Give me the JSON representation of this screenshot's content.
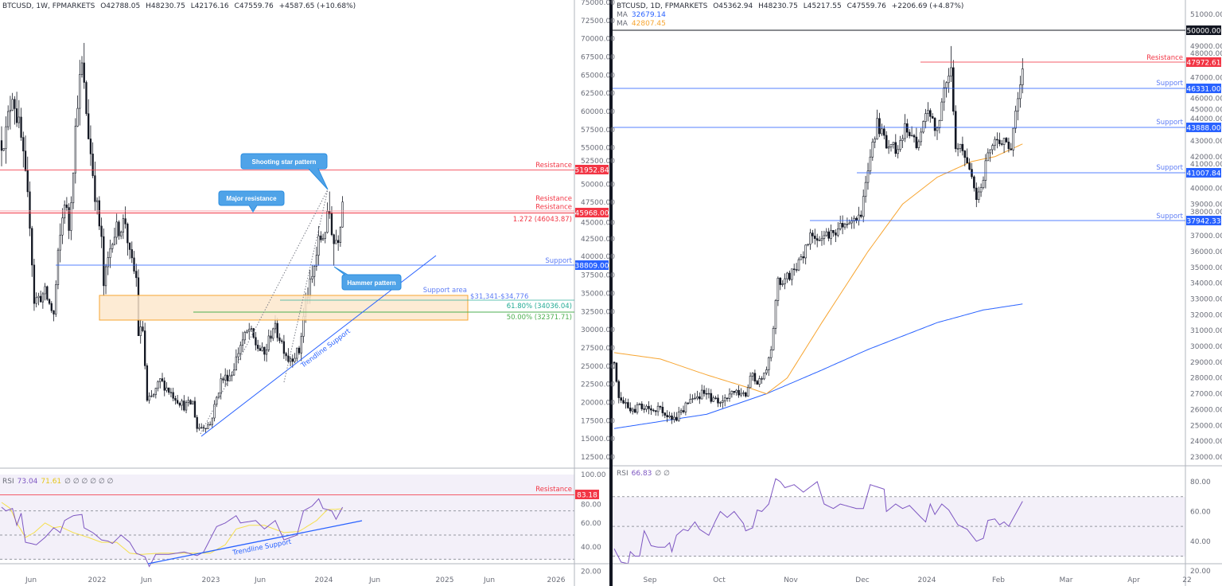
{
  "left_header": {
    "symbol": "BTCUSD, 1W, FPMARKETS",
    "o": "O42788.05",
    "h": "H48230.75",
    "l": "L42176.16",
    "c": "C47559.76",
    "chg": "+4587.65 (+10.68%)"
  },
  "right_header": {
    "symbol": "BTCUSD, 1D, FPMARKETS",
    "o": "O45362.94",
    "h": "H48230.75",
    "l": "L45217.55",
    "c": "C47559.76",
    "chg": "+2206.69 (+4.87%)",
    "ma1_label": "MA",
    "ma1_value": "32679.14",
    "ma2_label": "MA",
    "ma2_value": "42807.45"
  },
  "left_rsi_header": {
    "label": "RSI",
    "v1": "73.04",
    "v2": "71.61",
    "rest": "∅ ∅ ∅ ∅ ∅ ∅"
  },
  "right_rsi_header": {
    "label": "RSI",
    "v1": "66.83",
    "rest": "∅ ∅"
  },
  "colors": {
    "resistance": "#f23645",
    "support": "#2962ff",
    "support_text": "#5d7cf5",
    "support_area_fill": "#fde8cc",
    "support_area_stroke": "#f7a531",
    "fib618": "#22ab94",
    "fib50": "#4caf50",
    "rsi": "#7e57c2",
    "rsi_ma": "#f5df4d",
    "ma50": "#f7a531",
    "ma200": "#2962ff",
    "callout": "#4fa3e8"
  },
  "left_annotations": {
    "resistance_top": {
      "label": "Resistance",
      "price": "51952.84"
    },
    "resistance_mid": {
      "label1": "Resistance",
      "label2": "Resistance",
      "price": "45968.00",
      "fib": "1.272 (46043.87)"
    },
    "support": {
      "label": "Support",
      "price": "38809.00"
    },
    "support_area": {
      "label": "Support area",
      "range": "$31,341-$34,776"
    },
    "fib_618": "61.80% (34036.04)",
    "fib_50": "50.00% (32371.71)",
    "trendline": "Trendline Support",
    "callout_shooting_star": "Shooting star pattern",
    "callout_major_resistance": "Major resistance",
    "callout_hammer": "Hammer pattern",
    "rsi_resistance": {
      "label": "Resistance",
      "value": "83.18"
    },
    "rsi_trendline": "Trendline Support"
  },
  "right_annotations": {
    "round_level": "50000.00",
    "resistance": {
      "label": "Resistance",
      "price": "47972.61"
    },
    "supports": [
      {
        "label": "Support",
        "price": "46331.00"
      },
      {
        "label": "Support",
        "price": "43888.00"
      },
      {
        "label": "Support",
        "price": "41007.84"
      },
      {
        "label": "Support",
        "price": "37942.33"
      }
    ]
  },
  "left_price_ticks": [
    "75000.00",
    "72500.00",
    "70000.00",
    "67500.00",
    "65000.00",
    "62500.00",
    "60000.00",
    "57500.00",
    "55000.00",
    "52500.00",
    "50000.00",
    "47500.00",
    "45000.00",
    "42500.00",
    "40000.00",
    "37500.00",
    "35000.00",
    "32500.00",
    "30000.00",
    "27500.00",
    "25000.00",
    "22500.00",
    "20000.00",
    "17500.00",
    "15000.00",
    "12500.00"
  ],
  "right_price_ticks": [
    "51000.00",
    "49000.00",
    "48000.00",
    "47000.00",
    "46000.00",
    "45000.00",
    "44000.00",
    "43000.00",
    "42000.00",
    "41000.00",
    "40000.00",
    "39000.00",
    "38000.00",
    "37000.00",
    "36000.00",
    "35000.00",
    "34000.00",
    "33000.00",
    "32000.00",
    "31000.00",
    "30000.00",
    "29000.00",
    "28000.00",
    "27000.00",
    "26000.00",
    "25000.00",
    "24000.00",
    "23000.00"
  ],
  "left_rsi_ticks": [
    "100.00",
    "80.00",
    "60.00",
    "40.00",
    "20.00"
  ],
  "right_rsi_ticks": [
    "80.00",
    "60.00",
    "40.00",
    "20.00"
  ],
  "left_time_labels": [
    "Jun",
    "2022",
    "Jun",
    "2023",
    "Jun",
    "2024",
    "Jun",
    "2025",
    "Jun",
    "2026"
  ],
  "right_time_labels": [
    "Sep",
    "Oct",
    "Nov",
    "Dec",
    "2024",
    "Feb",
    "Mar",
    "Apr",
    "22"
  ],
  "chart_data": [
    {
      "type": "candlestick",
      "title": "BTCUSD, 1W",
      "ylim": [
        11000,
        76000
      ],
      "x_unit": "week index (0 = Feb 2021)",
      "close_waypoints": [
        [
          0,
          56000
        ],
        [
          2,
          57000
        ],
        [
          5,
          63000
        ],
        [
          9,
          56000
        ],
        [
          13,
          45000
        ],
        [
          15,
          34000
        ],
        [
          20,
          35000
        ],
        [
          24,
          32000
        ],
        [
          26,
          40000
        ],
        [
          29,
          48000
        ],
        [
          31,
          44000
        ],
        [
          35,
          62000
        ],
        [
          37,
          66000
        ],
        [
          40,
          57000
        ],
        [
          43,
          49000
        ],
        [
          46,
          42000
        ],
        [
          47,
          36000
        ],
        [
          51,
          43000
        ],
        [
          57,
          45000
        ],
        [
          59,
          40000
        ],
        [
          62,
          37000
        ],
        [
          63,
          29500
        ],
        [
          65,
          30000
        ],
        [
          67,
          20000
        ],
        [
          70,
          21000
        ],
        [
          73,
          23000
        ],
        [
          79,
          21000
        ],
        [
          84,
          19500
        ],
        [
          88,
          20000
        ],
        [
          90,
          16500
        ],
        [
          96,
          17000
        ],
        [
          101,
          23000
        ],
        [
          106,
          24000
        ],
        [
          110,
          28000
        ],
        [
          114,
          30000
        ],
        [
          117,
          28000
        ],
        [
          121,
          26500
        ],
        [
          125,
          30500
        ],
        [
          128,
          29000
        ],
        [
          132,
          26000
        ],
        [
          137,
          27000
        ],
        [
          140,
          34000
        ],
        [
          143,
          37000
        ],
        [
          146,
          42000
        ],
        [
          148,
          43000
        ],
        [
          151,
          46000
        ],
        [
          153,
          42000
        ],
        [
          155,
          43000
        ],
        [
          157,
          47560
        ]
      ],
      "rsi_waypoints": [
        [
          0,
          73
        ],
        [
          2,
          70
        ],
        [
          5,
          72
        ],
        [
          7,
          58
        ],
        [
          9,
          68
        ],
        [
          11,
          44
        ],
        [
          16,
          42
        ],
        [
          20,
          48
        ],
        [
          24,
          56
        ],
        [
          27,
          52
        ],
        [
          29,
          62
        ],
        [
          33,
          66
        ],
        [
          37,
          67
        ],
        [
          38,
          56
        ],
        [
          42,
          52
        ],
        [
          46,
          46
        ],
        [
          49,
          45
        ],
        [
          51,
          43
        ],
        [
          55,
          50
        ],
        [
          59,
          44
        ],
        [
          62,
          35
        ],
        [
          66,
          32
        ],
        [
          68,
          24
        ],
        [
          71,
          34
        ],
        [
          77,
          34
        ],
        [
          84,
          36
        ],
        [
          90,
          33
        ],
        [
          93,
          36
        ],
        [
          99,
          57
        ],
        [
          103,
          60
        ],
        [
          108,
          66
        ],
        [
          110,
          60
        ],
        [
          117,
          62
        ],
        [
          121,
          55
        ],
        [
          126,
          62
        ],
        [
          130,
          46
        ],
        [
          136,
          50
        ],
        [
          139,
          70
        ],
        [
          143,
          74
        ],
        [
          146,
          80
        ],
        [
          148,
          72
        ],
        [
          152,
          70
        ],
        [
          154,
          63
        ],
        [
          157,
          73.04
        ]
      ],
      "rsi_ma_waypoints": [
        [
          0,
          77
        ],
        [
          4,
          72
        ],
        [
          7,
          60
        ],
        [
          11,
          48
        ],
        [
          15,
          52
        ],
        [
          20,
          60
        ],
        [
          24,
          56
        ],
        [
          27,
          57
        ],
        [
          33,
          52
        ],
        [
          40,
          48
        ],
        [
          46,
          44
        ],
        [
          53,
          44
        ],
        [
          59,
          35
        ],
        [
          64,
          34
        ],
        [
          73,
          35
        ],
        [
          84,
          35
        ],
        [
          96,
          35
        ],
        [
          103,
          42
        ],
        [
          108,
          55
        ],
        [
          114,
          58
        ],
        [
          121,
          58
        ],
        [
          130,
          52
        ],
        [
          137,
          53
        ],
        [
          145,
          62
        ],
        [
          150,
          71
        ],
        [
          157,
          71.61
        ]
      ]
    },
    {
      "type": "candlestick",
      "title": "BTCUSD, 1D",
      "ylim": [
        22000,
        51800
      ],
      "x_unit": "day index (0 = mid Aug 2023)",
      "close_waypoints": [
        [
          0,
          29000
        ],
        [
          2,
          26500
        ],
        [
          7,
          26000
        ],
        [
          14,
          26200
        ],
        [
          21,
          25900
        ],
        [
          26,
          25300
        ],
        [
          31,
          26200
        ],
        [
          38,
          27000
        ],
        [
          45,
          26500
        ],
        [
          52,
          27000
        ],
        [
          57,
          26800
        ],
        [
          59,
          28200
        ],
        [
          62,
          27800
        ],
        [
          66,
          28600
        ],
        [
          68,
          30000
        ],
        [
          71,
          34000
        ],
        [
          74,
          34300
        ],
        [
          78,
          34800
        ],
        [
          81,
          35500
        ],
        [
          86,
          37200
        ],
        [
          91,
          36800
        ],
        [
          97,
          37500
        ],
        [
          102,
          37700
        ],
        [
          107,
          38500
        ],
        [
          110,
          41500
        ],
        [
          114,
          44000
        ],
        [
          117,
          43000
        ],
        [
          122,
          42500
        ],
        [
          126,
          43800
        ],
        [
          131,
          42800
        ],
        [
          136,
          44800
        ],
        [
          140,
          43500
        ],
        [
          143,
          46500
        ],
        [
          146,
          47500
        ],
        [
          148,
          42600
        ],
        [
          150,
          43000
        ],
        [
          153,
          41500
        ],
        [
          155,
          40500
        ],
        [
          157,
          39500
        ],
        [
          159,
          39800
        ],
        [
          162,
          42500
        ],
        [
          166,
          43200
        ],
        [
          169,
          42800
        ],
        [
          172,
          42600
        ],
        [
          174,
          45000
        ],
        [
          176,
          46500
        ],
        [
          177,
          47560
        ]
      ],
      "ma_50_waypoints": [
        [
          0,
          29600
        ],
        [
          20,
          29200
        ],
        [
          40,
          28200
        ],
        [
          60,
          27300
        ],
        [
          66,
          27000
        ],
        [
          75,
          28000
        ],
        [
          90,
          31500
        ],
        [
          110,
          36000
        ],
        [
          125,
          39000
        ],
        [
          140,
          40700
        ],
        [
          155,
          41700
        ],
        [
          165,
          42000
        ],
        [
          177,
          42807
        ]
      ],
      "ma_200_waypoints": [
        [
          0,
          24800
        ],
        [
          40,
          25700
        ],
        [
          66,
          27000
        ],
        [
          90,
          28500
        ],
        [
          110,
          29800
        ],
        [
          140,
          31500
        ],
        [
          160,
          32300
        ],
        [
          177,
          32679
        ]
      ],
      "rsi_waypoints": [
        [
          0,
          35
        ],
        [
          3,
          26
        ],
        [
          6,
          25
        ],
        [
          7,
          33
        ],
        [
          9,
          30
        ],
        [
          11,
          30
        ],
        [
          13,
          47
        ],
        [
          14,
          44
        ],
        [
          16,
          37
        ],
        [
          19,
          36
        ],
        [
          22,
          36
        ],
        [
          24,
          39
        ],
        [
          25,
          33
        ],
        [
          27,
          44
        ],
        [
          30,
          48
        ],
        [
          32,
          47
        ],
        [
          35,
          53
        ],
        [
          37,
          48
        ],
        [
          41,
          44
        ],
        [
          44,
          54
        ],
        [
          46,
          60
        ],
        [
          49,
          56
        ],
        [
          52,
          60
        ],
        [
          56,
          52
        ],
        [
          57,
          47
        ],
        [
          60,
          49
        ],
        [
          62,
          61
        ],
        [
          64,
          60
        ],
        [
          67,
          65
        ],
        [
          70,
          82
        ],
        [
          72,
          80
        ],
        [
          74,
          76
        ],
        [
          78,
          78
        ],
        [
          82,
          73
        ],
        [
          88,
          80
        ],
        [
          91,
          65
        ],
        [
          95,
          62
        ],
        [
          98,
          65
        ],
        [
          105,
          62
        ],
        [
          108,
          62
        ],
        [
          111,
          78
        ],
        [
          117,
          75
        ],
        [
          118,
          60
        ],
        [
          122,
          65
        ],
        [
          125,
          62
        ],
        [
          128,
          64
        ],
        [
          133,
          56
        ],
        [
          135,
          53
        ],
        [
          137,
          65
        ],
        [
          139,
          58
        ],
        [
          142,
          65
        ],
        [
          145,
          61
        ],
        [
          149,
          51
        ],
        [
          153,
          48
        ],
        [
          157,
          40
        ],
        [
          160,
          42
        ],
        [
          162,
          54
        ],
        [
          165,
          55
        ],
        [
          167,
          51
        ],
        [
          169,
          53
        ],
        [
          171,
          50
        ],
        [
          177,
          66.83
        ]
      ]
    }
  ]
}
